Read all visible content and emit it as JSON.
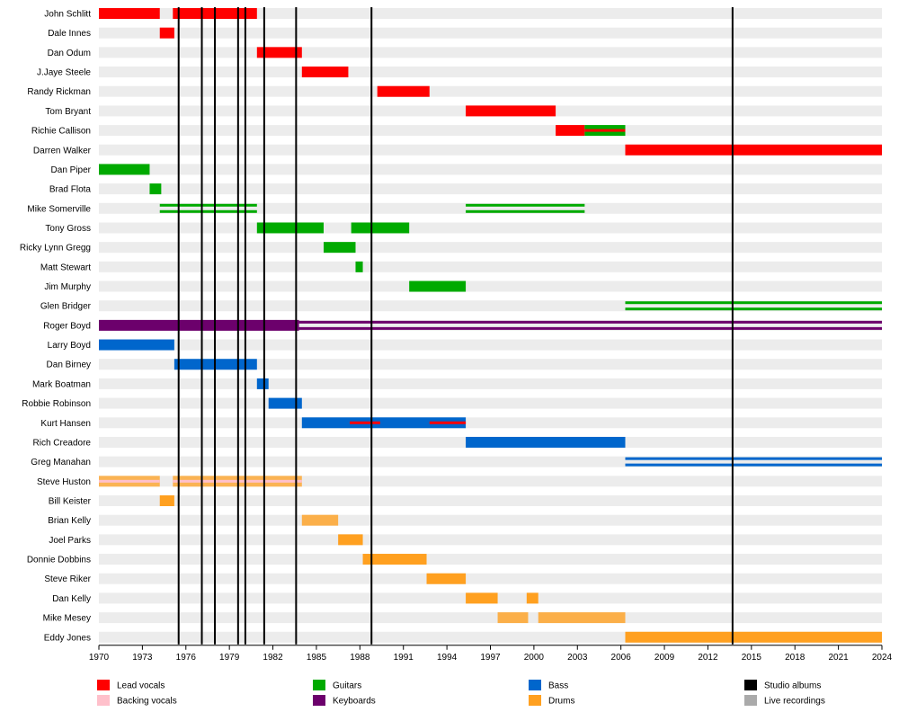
{
  "chart_data": {
    "type": "timeline",
    "x_range": [
      1970,
      2024
    ],
    "x_ticks": [
      "1970",
      "1973",
      "1976",
      "1979",
      "1982",
      "1985",
      "1988",
      "1991",
      "1994",
      "1997",
      "2000",
      "2003",
      "2006",
      "2009",
      "2012",
      "2015",
      "2018",
      "2021",
      "2024"
    ],
    "grid": "alternating row bands",
    "colors": {
      "lead": "#ff0000",
      "backing": "#ffc0cb",
      "guitar": "#00aa00",
      "keys": "#6c006c",
      "bass": "#0066cc",
      "drums": "#ffa020",
      "studio": "#000000",
      "live": "#aaaaaa",
      "band_light": "#ececec"
    },
    "members": [
      {
        "name": "John Schlitt",
        "bars": [
          {
            "role": "lead",
            "start": 1970,
            "end": 1974.2
          },
          {
            "role": "lead",
            "start": 1975.1,
            "end": 1980.9
          }
        ]
      },
      {
        "name": "Dale Innes",
        "bars": [
          {
            "role": "lead",
            "start": 1974.2,
            "end": 1975.2
          }
        ]
      },
      {
        "name": "Dan Odum",
        "bars": [
          {
            "role": "lead",
            "start": 1980.9,
            "end": 1984.0
          }
        ]
      },
      {
        "name": "J.Jaye Steele",
        "bars": [
          {
            "role": "lead",
            "start": 1984.0,
            "end": 1987.2
          }
        ]
      },
      {
        "name": "Randy Rickman",
        "bars": [
          {
            "role": "lead",
            "start": 1989.2,
            "end": 1992.8
          }
        ]
      },
      {
        "name": "Tom Bryant",
        "bars": [
          {
            "role": "lead",
            "start": 1995.3,
            "end": 2001.5
          }
        ]
      },
      {
        "name": "Richie Callison",
        "bars": [
          {
            "role": "lead",
            "start": 2001.5,
            "end": 2003.5
          },
          {
            "role": "guitar",
            "start": 2003.5,
            "end": 2006.3
          },
          {
            "role": "lead-guitar",
            "start": 2003.5,
            "end": 2006.3
          }
        ]
      },
      {
        "name": "Darren Walker",
        "bars": [
          {
            "role": "lead",
            "start": 2006.3,
            "end": 2024
          }
        ]
      },
      {
        "name": "Dan Piper",
        "bars": [
          {
            "role": "guitar",
            "start": 1970,
            "end": 1973.5
          }
        ]
      },
      {
        "name": "Brad Flota",
        "bars": [
          {
            "role": "guitar",
            "start": 1973.5,
            "end": 1974.3
          }
        ]
      },
      {
        "name": "Mike Somerville",
        "bars": [
          {
            "role": "guitar2",
            "start": 1974.2,
            "end": 1980.9
          },
          {
            "role": "guitar2",
            "start": 1995.3,
            "end": 2003.5
          }
        ]
      },
      {
        "name": "Tony Gross",
        "bars": [
          {
            "role": "guitar",
            "start": 1980.9,
            "end": 1985.5
          },
          {
            "role": "guitar",
            "start": 1987.4,
            "end": 1991.4
          }
        ]
      },
      {
        "name": "Ricky Lynn Gregg",
        "bars": [
          {
            "role": "guitar",
            "start": 1985.5,
            "end": 1987.7
          }
        ]
      },
      {
        "name": "Matt Stewart",
        "bars": [
          {
            "role": "guitar",
            "start": 1987.7,
            "end": 1988.2
          }
        ]
      },
      {
        "name": "Jim Murphy",
        "bars": [
          {
            "role": "guitar",
            "start": 1991.4,
            "end": 1995.3
          }
        ]
      },
      {
        "name": "Glen Bridger",
        "bars": [
          {
            "role": "guitar2",
            "start": 2006.3,
            "end": 2024
          }
        ]
      },
      {
        "name": "Roger Boyd",
        "bars": [
          {
            "role": "keys",
            "start": 1970,
            "end": 1983.8
          },
          {
            "role": "keys2",
            "start": 1983.8,
            "end": 2024
          }
        ]
      },
      {
        "name": "Larry Boyd",
        "bars": [
          {
            "role": "bass",
            "start": 1970,
            "end": 1975.2
          }
        ]
      },
      {
        "name": "Dan Birney",
        "bars": [
          {
            "role": "bass",
            "start": 1975.2,
            "end": 1980.9
          }
        ]
      },
      {
        "name": "Mark Boatman",
        "bars": [
          {
            "role": "bass",
            "start": 1980.9,
            "end": 1981.7
          }
        ]
      },
      {
        "name": "Robbie Robinson",
        "bars": [
          {
            "role": "bass",
            "start": 1981.7,
            "end": 1984.0
          }
        ]
      },
      {
        "name": "Kurt Hansen",
        "bars": [
          {
            "role": "bass",
            "start": 1984.0,
            "end": 1995.3
          },
          {
            "role": "lead-bass",
            "start": 1987.3,
            "end": 1989.4
          },
          {
            "role": "lead-bass",
            "start": 1992.8,
            "end": 1995.3
          }
        ]
      },
      {
        "name": "Rich Creadore",
        "bars": [
          {
            "role": "bass",
            "start": 1995.3,
            "end": 2006.3
          }
        ]
      },
      {
        "name": "Greg Manahan",
        "bars": [
          {
            "role": "bass2",
            "start": 2006.3,
            "end": 2024
          }
        ]
      },
      {
        "name": "Steve Huston",
        "bars": [
          {
            "role": "drums-backing",
            "start": 1970,
            "end": 1974.2
          },
          {
            "role": "drums-backing",
            "start": 1975.1,
            "end": 1984.0
          }
        ]
      },
      {
        "name": "Bill Keister",
        "bars": [
          {
            "role": "drums",
            "start": 1974.2,
            "end": 1975.2
          }
        ]
      },
      {
        "name": "Brian Kelly",
        "bars": [
          {
            "role": "drums-live",
            "start": 1984.0,
            "end": 1986.5
          }
        ]
      },
      {
        "name": "Joel Parks",
        "bars": [
          {
            "role": "drums",
            "start": 1986.5,
            "end": 1988.2
          }
        ]
      },
      {
        "name": "Donnie Dobbins",
        "bars": [
          {
            "role": "drums",
            "start": 1988.2,
            "end": 1992.6
          }
        ]
      },
      {
        "name": "Steve Riker",
        "bars": [
          {
            "role": "drums",
            "start": 1992.6,
            "end": 1995.3
          }
        ]
      },
      {
        "name": "Dan Kelly",
        "bars": [
          {
            "role": "drums",
            "start": 1995.3,
            "end": 1997.5
          },
          {
            "role": "drums",
            "start": 1999.5,
            "end": 2000.3
          }
        ]
      },
      {
        "name": "Mike Mesey",
        "bars": [
          {
            "role": "drums-live",
            "start": 1997.5,
            "end": 1999.6
          },
          {
            "role": "drums-live",
            "start": 2000.3,
            "end": 2006.3
          }
        ]
      },
      {
        "name": "Eddy Jones",
        "bars": [
          {
            "role": "drums",
            "start": 2006.3,
            "end": 2024
          }
        ]
      }
    ],
    "studio_albums": [
      1975.5,
      1977.1,
      1978.0,
      1979.6,
      1980.1,
      1981.4,
      1983.6,
      1988.8,
      2013.7
    ],
    "legend": [
      {
        "label": "Lead vocals",
        "color": "#ff0000"
      },
      {
        "label": "Backing vocals",
        "color": "#ffc0cb"
      },
      {
        "label": "Guitars",
        "color": "#00aa00"
      },
      {
        "label": "Keyboards",
        "color": "#6c006c"
      },
      {
        "label": "Bass",
        "color": "#0066cc"
      },
      {
        "label": "Drums",
        "color": "#ffa020"
      },
      {
        "label": "Studio albums",
        "color": "#000000"
      },
      {
        "label": "Live recordings",
        "color": "#aaaaaa"
      }
    ]
  }
}
